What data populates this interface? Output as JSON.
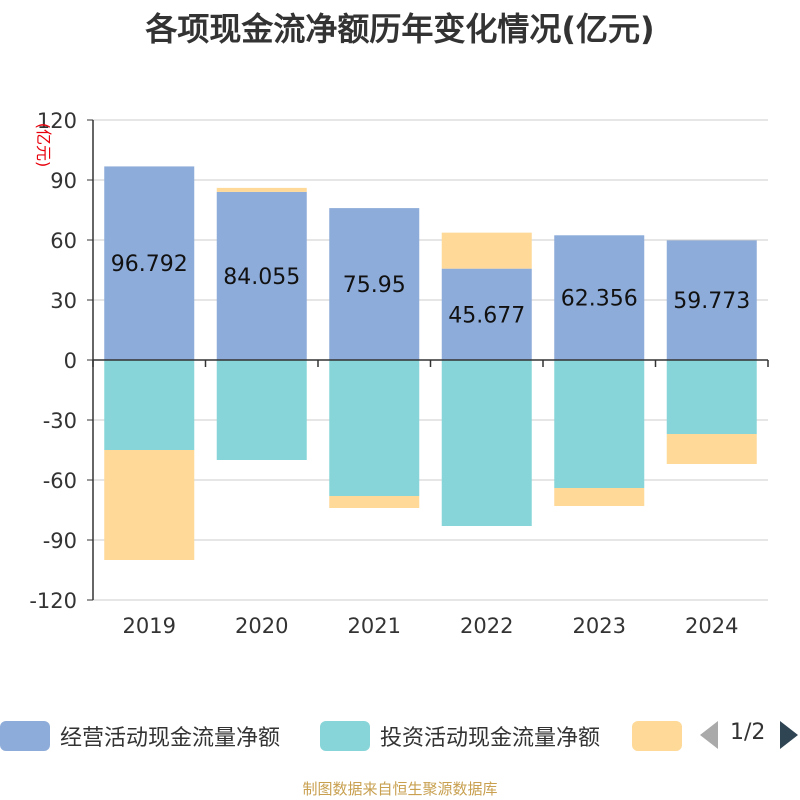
{
  "title": "各项现金流净额历年变化情况(亿元)",
  "footer": "制图数据来自恒生聚源数据库",
  "colors": {
    "operating": "#8eacd9",
    "investing": "#87d5d8",
    "financing": "#fed998",
    "axis": "#333333",
    "grid": "#cccccc",
    "unit": "#e8000b"
  },
  "legend": {
    "items": [
      {
        "label": "经营活动现金流量净额",
        "color": "#8eacd9"
      },
      {
        "label": "投资活动现金流量净额",
        "color": "#87d5d8"
      },
      {
        "label": "",
        "color": "#fed998"
      }
    ],
    "page": "1/2",
    "prev_icon": "triangle-left-icon",
    "next_icon": "triangle-right-icon"
  },
  "chart_data": {
    "type": "bar",
    "stacked": true,
    "categories": [
      "2019",
      "2020",
      "2021",
      "2022",
      "2023",
      "2024"
    ],
    "ylabel": "(亿元)",
    "ylim": [
      -120,
      120
    ],
    "yticks": [
      -120,
      -90,
      -60,
      -30,
      0,
      30,
      60,
      90,
      120
    ],
    "grid": true,
    "legend_position": "bottom",
    "series": [
      {
        "name": "经营活动现金流量净额",
        "values": [
          96.792,
          84.055,
          75.95,
          45.677,
          62.356,
          59.773
        ],
        "labels": [
          "96.792",
          "84.055",
          "75.95",
          "45.677",
          "62.356",
          "59.773"
        ]
      },
      {
        "name": "投资活动现金流量净额",
        "values": [
          -45,
          -50,
          -68,
          -83,
          -64,
          -37
        ]
      },
      {
        "name": "",
        "values": [
          -55,
          2,
          -6,
          18,
          -9,
          -15
        ]
      }
    ]
  }
}
